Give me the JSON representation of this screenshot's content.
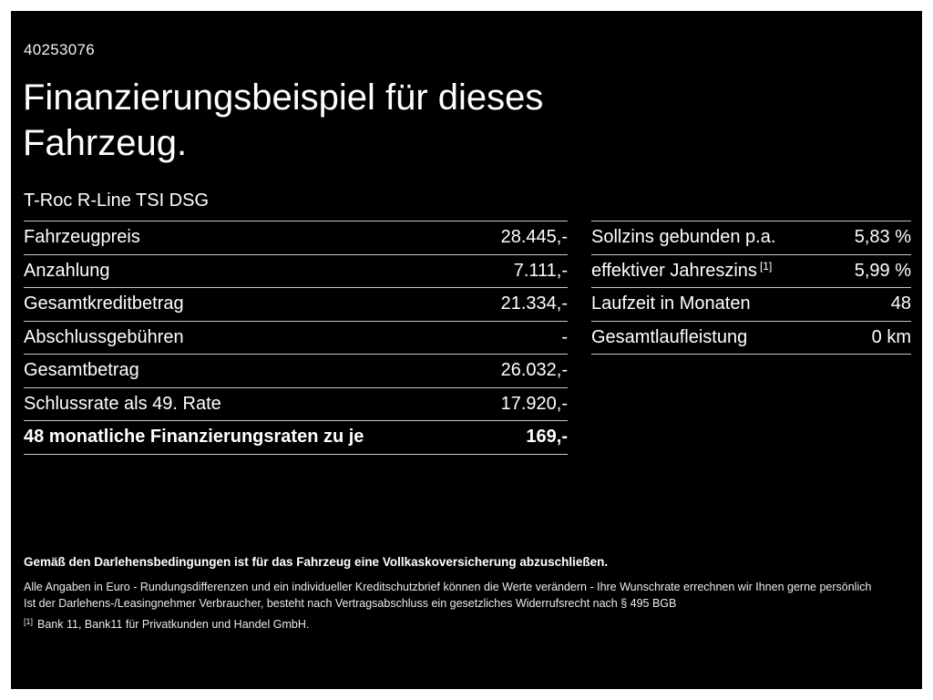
{
  "page": {
    "id_number": "40253076",
    "title_line1": "Finanzierungsbeispiel für dieses",
    "title_line2": "Fahrzeug.",
    "vehicle_model": "T-Roc R-Line TSI DSG"
  },
  "left_table": {
    "rows": [
      {
        "label": "Fahrzeugpreis",
        "value": "28.445,-"
      },
      {
        "label": "Anzahlung",
        "value": "7.111,-"
      },
      {
        "label": "Gesamtkreditbetrag",
        "value": "21.334,-"
      },
      {
        "label": "Abschlussgebühren",
        "value": "-"
      },
      {
        "label": "Gesamtbetrag",
        "value": "26.032,-"
      },
      {
        "label": "Schlussrate als 49. Rate",
        "value": "17.920,-"
      },
      {
        "label": "48 monatliche Finanzierungsraten zu je",
        "value": "169,-"
      }
    ]
  },
  "right_table": {
    "rows": [
      {
        "label": "Sollzins gebunden p.a.",
        "value": "5,83 %"
      },
      {
        "label": "effektiver Jahreszins",
        "sup": "[1]",
        "value": "5,99 %"
      },
      {
        "label": "Laufzeit in Monaten",
        "value": "48"
      },
      {
        "label": "Gesamtlaufleistung",
        "value": "0 km"
      }
    ]
  },
  "footnotes": {
    "line1": "Gemäß den Darlehensbedingungen ist für das Fahrzeug eine Vollkaskoversicherung abzuschließen.",
    "line2": "Alle Angaben in Euro - Rundungsdifferenzen und ein individueller Kreditschutzbrief können die Werte verändern - Ihre Wunschrate errechnen wir Ihnen gerne persönlich",
    "line3": "Ist der Darlehens-/Leasingnehmer Verbraucher, besteht nach Vertragsabschluss ein gesetzliches Widerrufsrecht nach § 495 BGB",
    "line4_sup": "[1]",
    "line4": "Bank 11, Bank11 für Privatkunden und Handel GmbH."
  },
  "colors": {
    "background": "#000000",
    "frame": "#ffffff",
    "text": "#ffffff",
    "divider": "#c9c9c9"
  }
}
